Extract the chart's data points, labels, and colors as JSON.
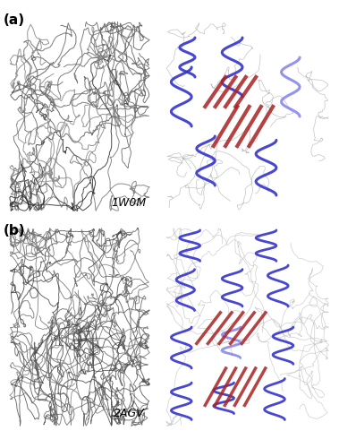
{
  "panel_a_label": "(a)",
  "panel_b_label": "(b)",
  "label_1w0m": "1W0M",
  "label_2agv": "2AGV",
  "figure_width": 3.79,
  "figure_height": 5.0,
  "background_color": "#ffffff",
  "panel_label_fontsize": 11,
  "mol_label_fontsize": 9,
  "layout": {
    "rows": 2,
    "cols": 2
  },
  "colors": {
    "coil_gray": "#555555",
    "coil_light": "#aaaaaa",
    "helix_blue": "#3333cc",
    "helix_light_blue": "#8888ee",
    "sheet_red": "#aa2222",
    "sheet_light_red": "#cc6666",
    "coil_black": "#222222",
    "background": "#ffffff"
  }
}
